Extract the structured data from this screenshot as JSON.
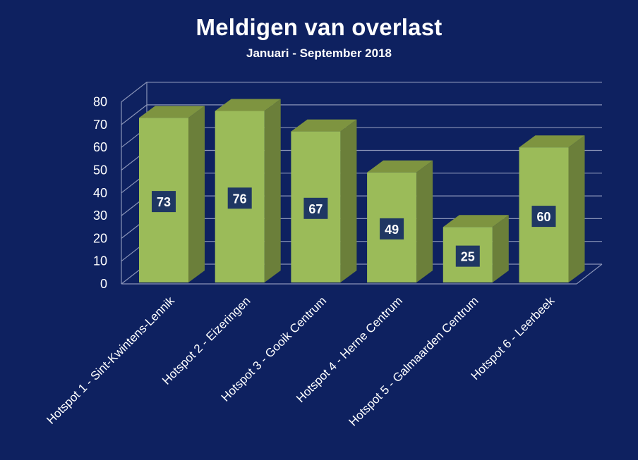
{
  "chart_data": {
    "type": "bar",
    "title": "Meldigen van overlast",
    "subtitle": "Januari - September 2018",
    "categories": [
      "Hotspot 1 - Sint-Kwintens-Lennik",
      "Hotspot 2 - Eizeringen",
      "Hotspot 3 - Gooik Centrum",
      "Hotspot 4 - Herne Centrum",
      "Hotspot 5 - Galmaarden Centrum",
      "Hotspot 6 - Leerbeek"
    ],
    "values": [
      73,
      76,
      67,
      49,
      25,
      60
    ],
    "ylim": [
      0,
      80
    ],
    "yticks": [
      0,
      10,
      20,
      30,
      40,
      50,
      60,
      70,
      80
    ],
    "xlabel": "",
    "ylabel": "",
    "grid": true,
    "style": "3d-column"
  },
  "colors": {
    "background": "#0e2160",
    "bar_front": "#9bbb59",
    "bar_side": "#6b7f3a",
    "bar_top": "#7e9440",
    "label_box": "#1f3763",
    "gridline": "#8a94b8",
    "text": "#ffffff"
  }
}
